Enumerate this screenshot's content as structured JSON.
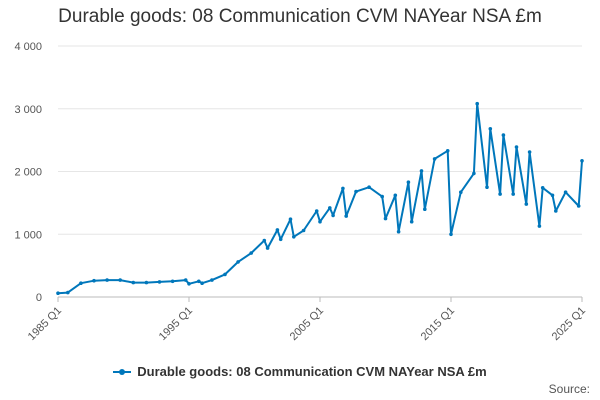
{
  "chart_data": {
    "type": "line",
    "title": "Durable goods: 08 Communication CVM NAYear NSA £m",
    "xlabel": "",
    "ylabel": "",
    "ylim": [
      0,
      4000
    ],
    "yticks": [
      0,
      1000,
      2000,
      3000,
      4000
    ],
    "ytick_labels": [
      "0",
      "1 000",
      "2 000",
      "3 000",
      "4 000"
    ],
    "xtick_labels": [
      "1985 Q1",
      "1995 Q1",
      "2005 Q1",
      "2015 Q1",
      "2025 Q1"
    ],
    "grid": true,
    "legend_position": "bottom",
    "color": "#0077bb",
    "series": [
      {
        "name": "Durable goods: 08 Communication CVM NAYear NSA £m",
        "points": [
          [
            "1985 Q1",
            60
          ],
          [
            "1985 Q4",
            70
          ],
          [
            "1986 Q4",
            220
          ],
          [
            "1987 Q4",
            260
          ],
          [
            "1988 Q4",
            270
          ],
          [
            "1989 Q4",
            270
          ],
          [
            "1990 Q4",
            230
          ],
          [
            "1991 Q4",
            230
          ],
          [
            "1992 Q4",
            240
          ],
          [
            "1993 Q4",
            250
          ],
          [
            "1994 Q4",
            270
          ],
          [
            "1995 Q1",
            210
          ],
          [
            "1995 Q4",
            250
          ],
          [
            "1996 Q1",
            220
          ],
          [
            "1996 Q4",
            270
          ],
          [
            "1997 Q4",
            360
          ],
          [
            "1998 Q4",
            560
          ],
          [
            "1999 Q4",
            700
          ],
          [
            "2000 Q4",
            900
          ],
          [
            "2001 Q1",
            780
          ],
          [
            "2001 Q4",
            1070
          ],
          [
            "2002 Q1",
            920
          ],
          [
            "2002 Q4",
            1240
          ],
          [
            "2003 Q1",
            960
          ],
          [
            "2003 Q4",
            1060
          ],
          [
            "2004 Q4",
            1370
          ],
          [
            "2005 Q1",
            1200
          ],
          [
            "2005 Q4",
            1420
          ],
          [
            "2006 Q1",
            1300
          ],
          [
            "2006 Q4",
            1730
          ],
          [
            "2007 Q1",
            1290
          ],
          [
            "2007 Q4",
            1680
          ],
          [
            "2008 Q4",
            1750
          ],
          [
            "2009 Q4",
            1600
          ],
          [
            "2010 Q1",
            1250
          ],
          [
            "2010 Q4",
            1620
          ],
          [
            "2011 Q1",
            1040
          ],
          [
            "2011 Q4",
            1830
          ],
          [
            "2012 Q1",
            1200
          ],
          [
            "2012 Q4",
            2010
          ],
          [
            "2013 Q1",
            1400
          ],
          [
            "2013 Q4",
            2200
          ],
          [
            "2014 Q4",
            2330
          ],
          [
            "2015 Q1",
            1000
          ],
          [
            "2015 Q4",
            1670
          ],
          [
            "2016 Q4",
            1970
          ],
          [
            "2017 Q1",
            3080
          ],
          [
            "2017 Q4",
            1750
          ],
          [
            "2018 Q1",
            2680
          ],
          [
            "2018 Q4",
            1640
          ],
          [
            "2019 Q1",
            2580
          ],
          [
            "2019 Q4",
            1640
          ],
          [
            "2020 Q1",
            2390
          ],
          [
            "2020 Q4",
            1480
          ],
          [
            "2021 Q1",
            2310
          ],
          [
            "2021 Q4",
            1130
          ],
          [
            "2022 Q1",
            1740
          ],
          [
            "2022 Q4",
            1620
          ],
          [
            "2023 Q1",
            1370
          ],
          [
            "2023 Q4",
            1670
          ],
          [
            "2024 Q4",
            1450
          ],
          [
            "2025 Q1",
            2170
          ]
        ]
      }
    ]
  },
  "source_label": "Source:"
}
